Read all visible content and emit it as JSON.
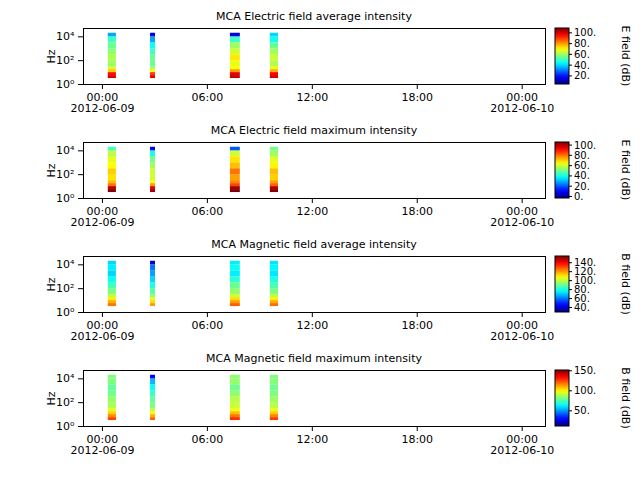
{
  "chart_data": [
    {
      "type": "heatmap",
      "title": "MCA  Electric field average intensity",
      "xlim": [
        "2012-06-08T22:55",
        "2012-06-10T01:20"
      ],
      "xticks": [
        {
          "value": "2012-06-09T00:00",
          "label": "00:00\n2012-06-09"
        },
        {
          "value": "2012-06-09T06:00",
          "label": "06:00"
        },
        {
          "value": "2012-06-09T12:00",
          "label": "12:00"
        },
        {
          "value": "2012-06-09T18:00",
          "label": "18:00"
        },
        {
          "value": "2012-06-10T00:00",
          "label": "00:00\n2012-06-10"
        }
      ],
      "ylabel": "Hz",
      "log": "y",
      "ylim": [
        1,
        50000
      ],
      "yticks": [
        {
          "value": 1,
          "label": "10⁰"
        },
        {
          "value": 100,
          "label": "10²"
        },
        {
          "value": 10000,
          "label": "10⁴"
        }
      ],
      "freq_edges": [
        3.16,
        5.62,
        10,
        17.8,
        31.6,
        100,
        316,
        1000,
        3160,
        10000,
        20000
      ],
      "intervals": [
        {
          "start": "2012-06-09T00:20",
          "end": "2012-06-09T00:48"
        },
        {
          "start": "2012-06-09T02:45",
          "end": "2012-06-09T03:02"
        },
        {
          "start": "2012-06-09T07:19",
          "end": "2012-06-09T07:53"
        },
        {
          "start": "2012-06-09T09:36",
          "end": "2012-06-09T10:04"
        }
      ],
      "cells": [
        [
          100,
          95,
          75,
          65,
          60,
          62,
          58,
          55,
          50,
          35
        ],
        [
          98,
          90,
          70,
          60,
          55,
          55,
          50,
          45,
          35,
          15
        ],
        [
          102,
          98,
          80,
          70,
          68,
          72,
          65,
          60,
          50,
          15
        ],
        [
          100,
          96,
          78,
          68,
          62,
          65,
          60,
          55,
          45,
          40
        ]
      ],
      "colorbar": {
        "label": "E field (dB)",
        "range": [
          5,
          109
        ],
        "ticks": [
          {
            "value": 20,
            "label": "20."
          },
          {
            "value": 40,
            "label": "40."
          },
          {
            "value": 60,
            "label": "60."
          },
          {
            "value": 80,
            "label": "80."
          },
          {
            "value": 100,
            "label": "100."
          }
        ]
      }
    },
    {
      "type": "heatmap",
      "title": "MCA  Electric field maximum intensity",
      "xlim": [
        "2012-06-08T22:55",
        "2012-06-10T01:20"
      ],
      "xticks": [
        {
          "value": "2012-06-09T00:00",
          "label": "00:00\n2012-06-09"
        },
        {
          "value": "2012-06-09T06:00",
          "label": "06:00"
        },
        {
          "value": "2012-06-09T12:00",
          "label": "12:00"
        },
        {
          "value": "2012-06-09T18:00",
          "label": "18:00"
        },
        {
          "value": "2012-06-10T00:00",
          "label": "00:00\n2012-06-10"
        }
      ],
      "ylabel": "Hz",
      "log": "y",
      "ylim": [
        1,
        50000
      ],
      "yticks": [
        {
          "value": 1,
          "label": "10⁰"
        },
        {
          "value": 100,
          "label": "10²"
        },
        {
          "value": 10000,
          "label": "10⁴"
        }
      ],
      "freq_edges": [
        3.16,
        5.62,
        10,
        17.8,
        31.6,
        100,
        316,
        1000,
        3160,
        10000,
        20000
      ],
      "intervals": [
        {
          "start": "2012-06-09T00:20",
          "end": "2012-06-09T00:48"
        },
        {
          "start": "2012-06-09T02:45",
          "end": "2012-06-09T03:02"
        },
        {
          "start": "2012-06-09T07:19",
          "end": "2012-06-09T07:53"
        },
        {
          "start": "2012-06-09T09:36",
          "end": "2012-06-09T10:04"
        }
      ],
      "cells": [
        [
          105,
          100,
          80,
          72,
          68,
          70,
          65,
          62,
          58,
          45
        ],
        [
          102,
          95,
          75,
          65,
          60,
          60,
          55,
          50,
          40,
          10
        ],
        [
          106,
          102,
          85,
          78,
          75,
          80,
          72,
          68,
          60,
          20
        ],
        [
          105,
          100,
          82,
          75,
          70,
          72,
          66,
          62,
          55,
          50
        ]
      ],
      "colorbar": {
        "label": "E field (dB)",
        "range": [
          -3,
          106
        ],
        "ticks": [
          {
            "value": 0,
            "label": "0."
          },
          {
            "value": 20,
            "label": "20."
          },
          {
            "value": 40,
            "label": "40."
          },
          {
            "value": 60,
            "label": "60."
          },
          {
            "value": 80,
            "label": "80."
          },
          {
            "value": 100,
            "label": "100."
          }
        ]
      }
    },
    {
      "type": "heatmap",
      "title": "MCA  Magnetic field average intensity",
      "xlim": [
        "2012-06-08T22:55",
        "2012-06-10T01:20"
      ],
      "xticks": [
        {
          "value": "2012-06-09T00:00",
          "label": "00:00\n2012-06-09"
        },
        {
          "value": "2012-06-09T06:00",
          "label": "06:00"
        },
        {
          "value": "2012-06-09T12:00",
          "label": "12:00"
        },
        {
          "value": "2012-06-09T18:00",
          "label": "18:00"
        },
        {
          "value": "2012-06-10T00:00",
          "label": "00:00\n2012-06-10"
        }
      ],
      "ylabel": "Hz",
      "log": "y",
      "ylim": [
        1,
        50000
      ],
      "yticks": [
        {
          "value": 1,
          "label": "10⁰"
        },
        {
          "value": 100,
          "label": "10²"
        },
        {
          "value": 10000,
          "label": "10⁴"
        }
      ],
      "freq_edges": [
        3.16,
        5.62,
        10,
        17.8,
        31.6,
        100,
        316,
        1000,
        3160,
        10000,
        20000
      ],
      "intervals": [
        {
          "start": "2012-06-09T00:20",
          "end": "2012-06-09T00:48"
        },
        {
          "start": "2012-06-09T02:45",
          "end": "2012-06-09T03:02"
        },
        {
          "start": "2012-06-09T07:19",
          "end": "2012-06-09T07:53"
        },
        {
          "start": "2012-06-09T09:36",
          "end": "2012-06-09T10:04"
        }
      ],
      "cells": [
        [
          125,
          118,
          110,
          100,
          92,
          85,
          78,
          72,
          75,
          72
        ],
        [
          120,
          112,
          105,
          95,
          88,
          80,
          72,
          65,
          60,
          40
        ],
        [
          128,
          120,
          112,
          102,
          95,
          90,
          82,
          75,
          78,
          75
        ],
        [
          126,
          118,
          110,
          100,
          92,
          86,
          80,
          74,
          76,
          74
        ]
      ],
      "colorbar": {
        "label": "B field (dB)",
        "range": [
          30,
          155
        ],
        "ticks": [
          {
            "value": 40,
            "label": "40."
          },
          {
            "value": 60,
            "label": "60."
          },
          {
            "value": 80,
            "label": "80."
          },
          {
            "value": 100,
            "label": "100."
          },
          {
            "value": 120,
            "label": "120."
          },
          {
            "value": 140,
            "label": "140."
          }
        ]
      }
    },
    {
      "type": "heatmap",
      "title": "MCA  Magnetic field maximum intensity",
      "xlim": [
        "2012-06-08T22:55",
        "2012-06-10T01:20"
      ],
      "xticks": [
        {
          "value": "2012-06-09T00:00",
          "label": "00:00\n2012-06-09"
        },
        {
          "value": "2012-06-09T06:00",
          "label": "06:00"
        },
        {
          "value": "2012-06-09T12:00",
          "label": "12:00"
        },
        {
          "value": "2012-06-09T18:00",
          "label": "18:00"
        },
        {
          "value": "2012-06-10T00:00",
          "label": "00:00\n2012-06-10"
        }
      ],
      "ylabel": "Hz",
      "log": "y",
      "ylim": [
        1,
        50000
      ],
      "yticks": [
        {
          "value": 1,
          "label": "10⁰"
        },
        {
          "value": 100,
          "label": "10²"
        },
        {
          "value": 10000,
          "label": "10⁴"
        }
      ],
      "freq_edges": [
        3.16,
        5.62,
        10,
        17.8,
        31.6,
        100,
        316,
        1000,
        3160,
        10000,
        20000
      ],
      "intervals": [
        {
          "start": "2012-06-09T00:20",
          "end": "2012-06-09T00:48"
        },
        {
          "start": "2012-06-09T02:45",
          "end": "2012-06-09T03:02"
        },
        {
          "start": "2012-06-09T07:19",
          "end": "2012-06-09T07:53"
        },
        {
          "start": "2012-06-09T09:36",
          "end": "2012-06-09T10:04"
        }
      ],
      "cells": [
        [
          125,
          115,
          105,
          95,
          88,
          85,
          80,
          78,
          82,
          82
        ],
        [
          120,
          110,
          100,
          90,
          82,
          78,
          72,
          65,
          55,
          30
        ],
        [
          128,
          118,
          108,
          98,
          92,
          90,
          84,
          80,
          85,
          84
        ],
        [
          126,
          116,
          106,
          96,
          90,
          86,
          82,
          80,
          83,
          82
        ]
      ],
      "colorbar": {
        "label": "B field (dB)",
        "range": [
          12,
          152
        ],
        "ticks": [
          {
            "value": 50,
            "label": "50."
          },
          {
            "value": 100,
            "label": "100."
          },
          {
            "value": 150,
            "label": "150."
          }
        ]
      }
    }
  ]
}
